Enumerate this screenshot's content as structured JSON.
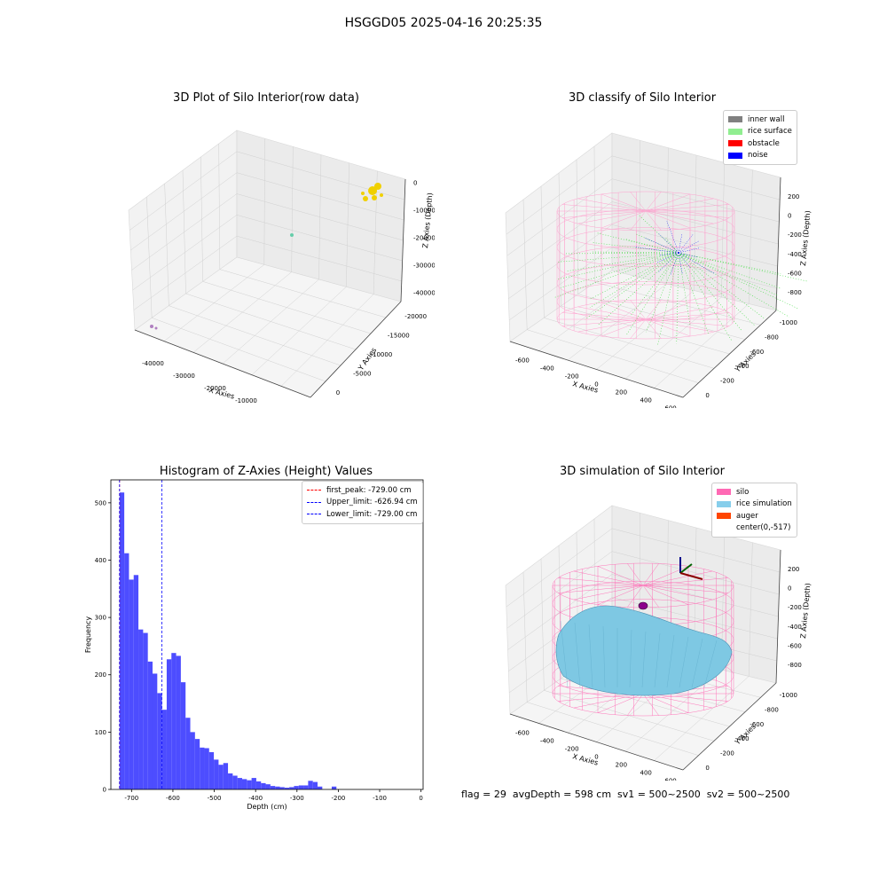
{
  "suptitle": "HSGGD05 2025-04-16 20:25:35",
  "panels": {
    "raw": {
      "title": "3D Plot of Silo Interior(row data)",
      "xlabel": "X Axies",
      "ylabel": "Y Axies",
      "zlabel": "Z Axies (Depth)",
      "xticks": [
        "-40000",
        "-30000",
        "-20000",
        "-10000",
        "0"
      ],
      "yticks": [
        "0",
        "-5000",
        "-10000",
        "-15000",
        "-20000"
      ],
      "zticks": [
        "0",
        "-10000",
        "-20000",
        "-30000",
        "-40000"
      ]
    },
    "classify": {
      "title": "3D classify of Silo Interior",
      "xlabel": "X Axies",
      "ylabel": "Y Axies",
      "zlabel": "Z Axies (Depth)",
      "xticks": [
        "-600",
        "-400",
        "-200",
        "0",
        "200",
        "400",
        "600"
      ],
      "yticks": [
        "0",
        "-200",
        "-400",
        "-600",
        "-800",
        "-1000"
      ],
      "zticks": [
        "200",
        "0",
        "-200",
        "-400",
        "-600",
        "-800"
      ],
      "legend": [
        {
          "label": "inner wall",
          "color": "#808080"
        },
        {
          "label": "rice surface",
          "color": "#90ee90"
        },
        {
          "label": "obstacle",
          "color": "#ff0000"
        },
        {
          "label": "noise",
          "color": "#0000ff"
        }
      ]
    },
    "simulation": {
      "title": "3D simulation of Silo Interior",
      "xlabel": "X Axies",
      "ylabel": "Y Axies",
      "zlabel": "Z Axies (Depth)",
      "xticks": [
        "-600",
        "-400",
        "-200",
        "0",
        "200",
        "400",
        "600"
      ],
      "yticks": [
        "0",
        "-200",
        "-400",
        "-600",
        "-800",
        "-1000"
      ],
      "zticks": [
        "200",
        "0",
        "-200",
        "-400",
        "-600",
        "-800"
      ],
      "legend": [
        {
          "label": "silo",
          "color": "#ff69b4"
        },
        {
          "label": "rice simulation",
          "color": "#87ceeb"
        },
        {
          "label": "auger",
          "color": "#ff4500"
        },
        {
          "label": "center(0,-517)",
          "color": ""
        }
      ]
    }
  },
  "footer": "flag = 29  avgDepth = 598 cm  sv1 = 500~2500  sv2 = 500~2500",
  "chart_data": {
    "type": "bar",
    "title": "Histogram of Z-Axies (Height) Values",
    "xlabel": "Depth (cm)",
    "ylabel": "Frequency",
    "xlim": [
      -750,
      5
    ],
    "ylim": [
      0,
      540
    ],
    "xticks": [
      -700,
      -600,
      -500,
      -400,
      -300,
      -200,
      -100,
      0
    ],
    "yticks": [
      0,
      100,
      200,
      300,
      400,
      500
    ],
    "bin_width": 11.4,
    "bin_start": -729,
    "values": [
      518,
      412,
      366,
      374,
      279,
      273,
      223,
      202,
      168,
      139,
      227,
      238,
      233,
      187,
      125,
      100,
      88,
      73,
      72,
      65,
      52,
      43,
      46,
      28,
      24,
      20,
      18,
      16,
      20,
      14,
      11,
      9,
      6,
      5,
      4,
      3,
      4,
      6,
      7,
      7,
      15,
      13,
      5,
      0,
      0,
      5
    ],
    "color": "#4d4dff",
    "lines": [
      {
        "label": "first_peak: -729.00 cm",
        "x": -729,
        "color": "#ff0000"
      },
      {
        "label": "Upper_limit: -626.94 cm",
        "x": -626.94,
        "color": "#0000ff"
      },
      {
        "label": "Lower_limit: -729.00 cm",
        "x": -729,
        "color": "#0000ff"
      }
    ],
    "legend_position": "top-right"
  }
}
